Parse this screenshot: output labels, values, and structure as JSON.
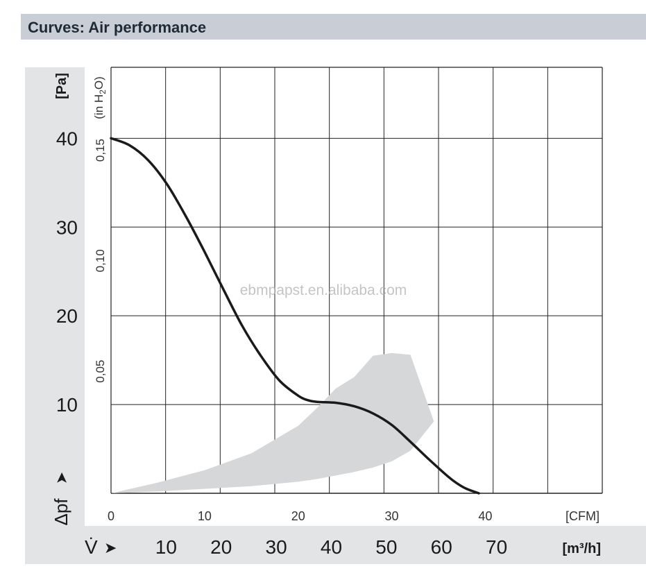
{
  "header": {
    "title": "Curves: Air performance"
  },
  "watermark": "ebmpapst.en.alibaba.com",
  "chart_data": {
    "type": "line",
    "title": "",
    "y_axis_pa": {
      "label": "Δpf",
      "unit": "[Pa]",
      "range": [
        0,
        48
      ],
      "ticks": [
        10,
        20,
        30,
        40
      ]
    },
    "y_axis_inh2o": {
      "label": "(in H2O)",
      "ticks": [
        "0,05",
        "0,10",
        "0,15"
      ],
      "tick_values": [
        0.05,
        0.1,
        0.15
      ]
    },
    "x_axis_cfm": {
      "unit": "[CFM]",
      "range": [
        0,
        52.5
      ],
      "ticks": [
        0,
        10,
        20,
        30,
        40
      ]
    },
    "x_axis_m3h": {
      "label": "V̇",
      "unit": "[m³/h]",
      "ticks": [
        10,
        20,
        30,
        40,
        50,
        60,
        70
      ]
    },
    "grid": true,
    "series": [
      {
        "x": [
          0,
          2,
          4,
          6,
          8,
          10,
          12,
          14,
          16,
          18,
          20,
          21,
          22,
          24,
          26,
          28,
          30,
          32,
          34,
          36,
          37,
          38,
          39.3
        ],
        "y": [
          40,
          39.2,
          37.5,
          34.8,
          31.2,
          27.2,
          23.0,
          18.9,
          15.5,
          12.7,
          11.0,
          10.5,
          10.3,
          10.2,
          9.8,
          9.0,
          7.7,
          5.8,
          3.8,
          1.9,
          1.1,
          0.5,
          0
        ]
      }
    ],
    "operating_range": {
      "x": [
        0,
        5,
        10,
        15,
        20,
        22,
        24,
        26,
        28,
        30,
        32,
        34.5,
        32,
        30,
        28,
        26,
        24,
        22,
        20,
        15,
        10,
        5,
        0
      ],
      "y": [
        0,
        1.2,
        2.6,
        4.5,
        7.6,
        9.6,
        11.8,
        13.1,
        15.5,
        15.8,
        15.6,
        8.1,
        4.8,
        3.6,
        2.9,
        2.4,
        2.0,
        1.6,
        1.3,
        0.8,
        0.5,
        0.2,
        0
      ]
    },
    "colors": {
      "curve": "#1a1a1a",
      "range": "#d6d7d9",
      "grid": "#222222",
      "panel": "#e3e4e6",
      "header": "#c9ced6"
    }
  }
}
